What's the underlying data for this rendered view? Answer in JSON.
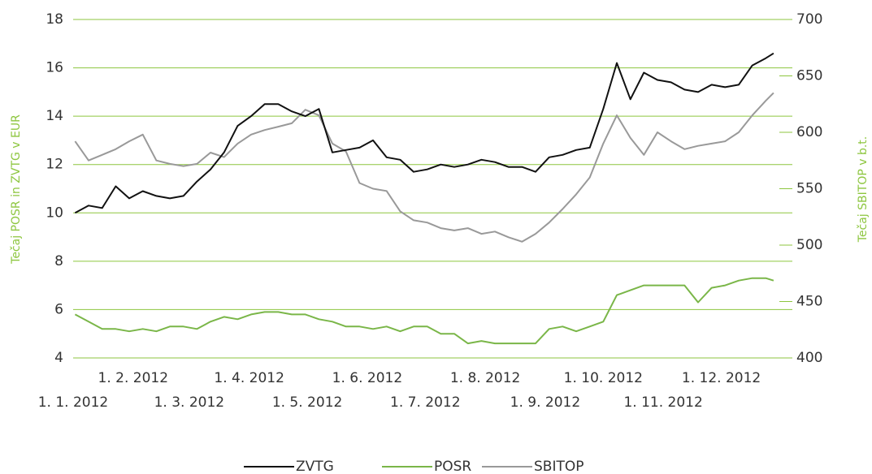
{
  "chart_data": {
    "type": "line",
    "y_label": "Tečaj POSR in ZVTG v EUR",
    "y2_label": "Tečaj SBITOP v b.t.",
    "x": [
      "2012-01-02",
      "2012-01-09",
      "2012-01-16",
      "2012-01-23",
      "2012-01-30",
      "2012-02-06",
      "2012-02-13",
      "2012-02-20",
      "2012-02-27",
      "2012-03-05",
      "2012-03-12",
      "2012-03-19",
      "2012-03-26",
      "2012-04-02",
      "2012-04-09",
      "2012-04-16",
      "2012-04-23",
      "2012-04-30",
      "2012-05-07",
      "2012-05-14",
      "2012-05-21",
      "2012-05-28",
      "2012-06-04",
      "2012-06-11",
      "2012-06-18",
      "2012-06-25",
      "2012-07-02",
      "2012-07-09",
      "2012-07-16",
      "2012-07-23",
      "2012-07-30",
      "2012-08-06",
      "2012-08-13",
      "2012-08-20",
      "2012-08-27",
      "2012-09-03",
      "2012-09-10",
      "2012-09-17",
      "2012-09-24",
      "2012-10-01",
      "2012-10-08",
      "2012-10-15",
      "2012-10-22",
      "2012-10-29",
      "2012-11-05",
      "2012-11-12",
      "2012-11-19",
      "2012-11-26",
      "2012-12-03",
      "2012-12-10",
      "2012-12-17",
      "2012-12-24",
      "2012-12-28"
    ],
    "series": [
      {
        "name": "ZVTG",
        "color": "#111111",
        "axis": "y",
        "values": [
          10.0,
          10.3,
          10.2,
          11.1,
          10.6,
          10.9,
          10.7,
          10.6,
          10.7,
          11.3,
          11.8,
          12.5,
          13.6,
          14.0,
          14.5,
          14.5,
          14.2,
          14.0,
          14.3,
          12.5,
          12.6,
          12.7,
          13.0,
          12.3,
          12.2,
          11.7,
          11.8,
          12.0,
          11.9,
          12.0,
          12.2,
          12.1,
          11.9,
          11.9,
          11.7,
          12.3,
          12.4,
          12.6,
          12.7,
          14.3,
          16.2,
          14.7,
          15.8,
          15.5,
          15.4,
          15.1,
          15.0,
          15.3,
          15.2,
          15.3,
          16.1,
          16.4,
          16.6
        ]
      },
      {
        "name": "POSR",
        "color": "#7ab648",
        "axis": "y",
        "values": [
          5.8,
          5.5,
          5.2,
          5.2,
          5.1,
          5.2,
          5.1,
          5.3,
          5.3,
          5.2,
          5.5,
          5.7,
          5.6,
          5.8,
          5.9,
          5.9,
          5.8,
          5.8,
          5.6,
          5.5,
          5.3,
          5.3,
          5.2,
          5.3,
          5.1,
          5.3,
          5.3,
          5.0,
          5.0,
          4.6,
          4.7,
          4.6,
          4.6,
          4.6,
          4.6,
          5.2,
          5.3,
          5.1,
          5.3,
          5.5,
          6.6,
          6.8,
          7.0,
          7.0,
          7.0,
          7.0,
          6.3,
          6.9,
          7.0,
          7.2,
          7.3,
          7.3,
          7.2
        ]
      },
      {
        "name": "SBITOP",
        "color": "#999999",
        "axis": "y2",
        "values": [
          592,
          575,
          580,
          585,
          592,
          598,
          575,
          572,
          570,
          572,
          582,
          578,
          590,
          598,
          602,
          605,
          608,
          620,
          615,
          590,
          583,
          555,
          550,
          548,
          530,
          522,
          520,
          515,
          513,
          515,
          510,
          512,
          507,
          503,
          510,
          520,
          532,
          545,
          560,
          590,
          615,
          595,
          580,
          600,
          592,
          585,
          588,
          590,
          592,
          600,
          615,
          628,
          635
        ]
      }
    ],
    "xlim": [
      "2012-01-01",
      "2012-12-31"
    ],
    "xticks": [
      {
        "value": "2012-01-01",
        "label": "1. 1. 2012"
      },
      {
        "value": "2012-02-01",
        "label": "1. 2. 2012"
      },
      {
        "value": "2012-03-01",
        "label": "1. 3. 2012"
      },
      {
        "value": "2012-04-01",
        "label": "1. 4. 2012"
      },
      {
        "value": "2012-05-01",
        "label": "1. 5. 2012"
      },
      {
        "value": "2012-06-01",
        "label": "1. 6. 2012"
      },
      {
        "value": "2012-07-01",
        "label": "1. 7. 2012"
      },
      {
        "value": "2012-08-01",
        "label": "1. 8. 2012"
      },
      {
        "value": "2012-09-01",
        "label": "1. 9. 2012"
      },
      {
        "value": "2012-10-01",
        "label": "1. 10. 2012"
      },
      {
        "value": "2012-11-01",
        "label": "1. 11. 2012"
      },
      {
        "value": "2012-12-01",
        "label": "1. 12. 2012"
      }
    ],
    "ylim": [
      4,
      18
    ],
    "yticks": [
      4,
      6,
      8,
      10,
      12,
      14,
      16,
      18
    ],
    "y2lim": [
      400,
      700
    ],
    "y2ticks": [
      400,
      450,
      500,
      550,
      600,
      650,
      700
    ],
    "grid": true,
    "legend": "bottom"
  }
}
